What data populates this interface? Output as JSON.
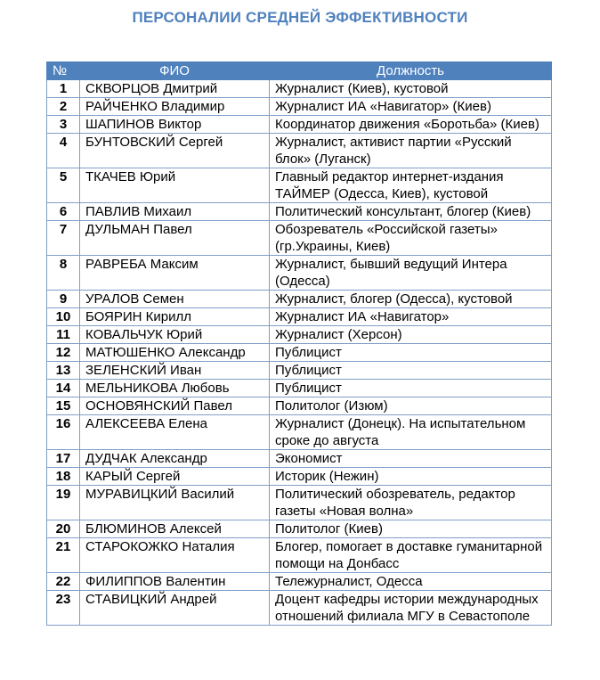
{
  "title": "ПЕРСОНАЛИИ СРЕДНЕЙ ЭФФЕКТИВНОСТИ",
  "columns": {
    "num": "№",
    "name": "ФИО",
    "position": "Должность"
  },
  "colors": {
    "title": "#4f81bd",
    "header_bg": "#4f81bd",
    "border": "#7f9fc8"
  },
  "rows": [
    {
      "num": "1",
      "name": "СКВОРЦОВ Дмитрий",
      "position": "Журналист (Киев), кустовой"
    },
    {
      "num": "2",
      "name": "РАЙЧЕНКО Владимир",
      "position": "Журналист  ИА «Навигатор» (Киев)"
    },
    {
      "num": "3",
      "name": "ШАПИНОВ Виктор",
      "position": "Координатор движения «Боротьба» (Киев)"
    },
    {
      "num": "4",
      "name": "БУНТОВСКИЙ Сергей",
      "position": "Журналист, активист партии «Русский блок» (Луганск)"
    },
    {
      "num": "5",
      "name": "ТКАЧЕВ Юрий",
      "position": "Главный редактор интернет-издания ТАЙМЕР (Одесса, Киев), кустовой"
    },
    {
      "num": "6",
      "name": "ПАВЛИВ Михаил",
      "position": "Политический консультант, блогер (Киев)"
    },
    {
      "num": "7",
      "name": "ДУЛЬМАН Павел",
      "position": "Обозреватель «Российской газеты» (гр.Украины, Киев)"
    },
    {
      "num": "8",
      "name": "РАВРЕБА Максим",
      "position": "Журналист, бывший ведущий Интера (Одесса)"
    },
    {
      "num": "9",
      "name": "УРАЛОВ Семен",
      "position": "Журналист, блогер (Одесса), кустовой"
    },
    {
      "num": "10",
      "name": "БОЯРИН Кирилл",
      "position": "Журналист  ИА «Навигатор»"
    },
    {
      "num": "11",
      "name": "КОВАЛЬЧУК Юрий",
      "position": "Журналист (Херсон)"
    },
    {
      "num": "12",
      "name": "МАТЮШЕНКО Александр",
      "position": "Публицист"
    },
    {
      "num": "13",
      "name": "ЗЕЛЕНСКИЙ Иван",
      "position": "Публицист"
    },
    {
      "num": "14",
      "name": "МЕЛЬНИКОВА Любовь",
      "position": "Публицист"
    },
    {
      "num": "15",
      "name": "ОСНОВЯНСКИЙ Павел",
      "position": "Политолог (Изюм)"
    },
    {
      "num": "16",
      "name": "АЛЕКСЕЕВА Елена",
      "position": "Журналист (Донецк). На испытательном сроке  до августа"
    },
    {
      "num": "17",
      "name": "ДУДЧАК Александр",
      "position": "Экономист"
    },
    {
      "num": "18",
      "name": "КАРЫЙ Сергей",
      "position": "Историк (Нежин)"
    },
    {
      "num": "19",
      "name": "МУРАВИЦКИЙ Василий",
      "position": "Политический обозреватель, редактор газеты «Новая волна»"
    },
    {
      "num": "20",
      "name": "БЛЮМИНОВ Алексей",
      "position": "Политолог (Киев)"
    },
    {
      "num": "21",
      "name": "СТАРОКОЖКО Наталия",
      "position": "Блогер, помогает в доставке гуманитарной помощи на Донбасс"
    },
    {
      "num": "22",
      "name": "ФИЛИППОВ Валентин",
      "position": "Тележурналист, Одесса"
    },
    {
      "num": "23",
      "name": "СТАВИЦКИЙ Андрей",
      "position": "Доцент кафедры истории международных отношений филиала МГУ в Севастополе"
    }
  ]
}
